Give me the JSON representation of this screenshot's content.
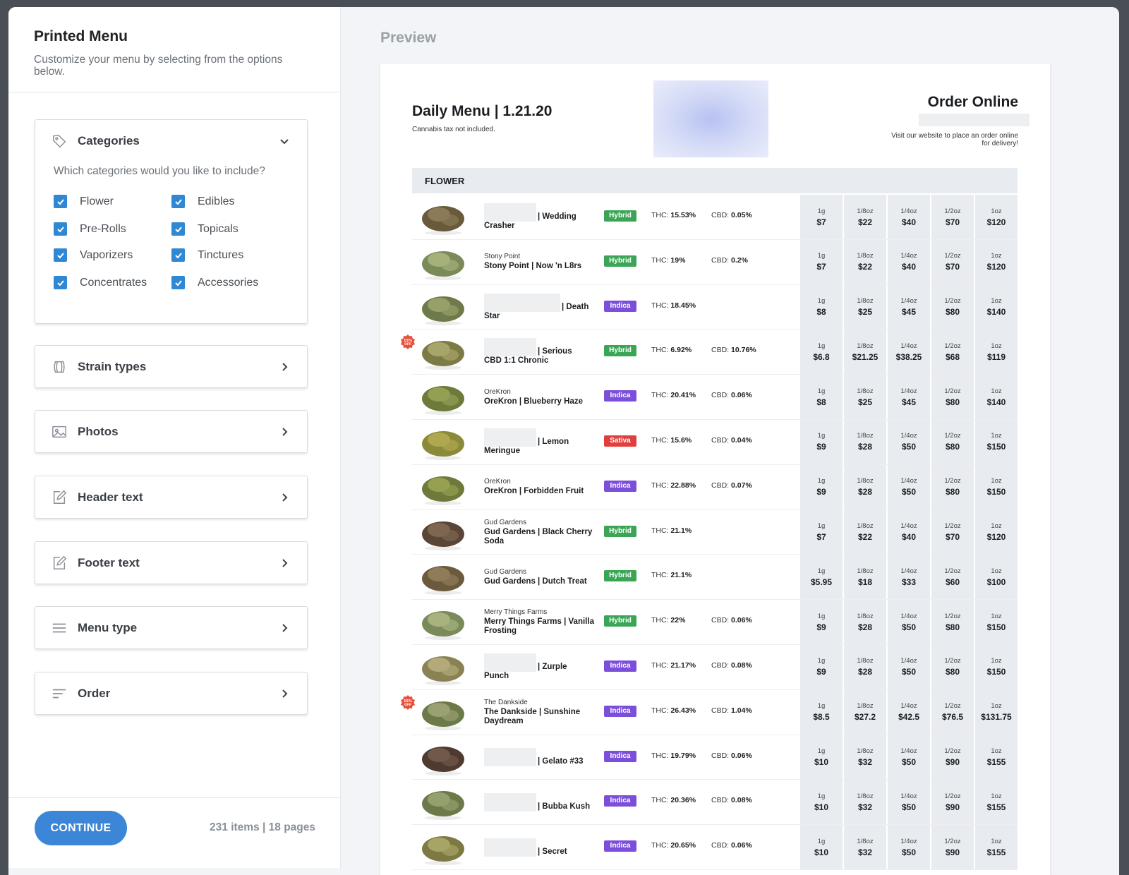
{
  "sidebar": {
    "title": "Printed Menu",
    "subtitle": "Customize your menu by selecting from the options below.",
    "categories": {
      "label": "Categories",
      "question": "Which categories would you like to include?",
      "items": [
        {
          "label": "Flower",
          "checked": true
        },
        {
          "label": "Edibles",
          "checked": true
        },
        {
          "label": "Pre-Rolls",
          "checked": true
        },
        {
          "label": "Topicals",
          "checked": true
        },
        {
          "label": "Vaporizers",
          "checked": true
        },
        {
          "label": "Tinctures",
          "checked": true
        },
        {
          "label": "Concentrates",
          "checked": true
        },
        {
          "label": "Accessories",
          "checked": true
        }
      ]
    },
    "sections": [
      {
        "label": "Strain types",
        "icon": "strain-icon"
      },
      {
        "label": "Photos",
        "icon": "image-icon"
      },
      {
        "label": "Header text",
        "icon": "edit-icon"
      },
      {
        "label": "Footer text",
        "icon": "edit-icon"
      },
      {
        "label": "Menu type",
        "icon": "menu-lines-icon"
      },
      {
        "label": "Order",
        "icon": "sort-icon"
      }
    ],
    "continue_label": "CONTINUE",
    "count_text": "231 items | 18 pages"
  },
  "preview": {
    "label": "Preview",
    "menu_title": "Daily Menu | 1.21.20",
    "tax_note": "Cannabis tax not included.",
    "order_title": "Order Online",
    "order_sub": "Visit our website to place an order online for delivery!",
    "section": "FLOWER",
    "units": [
      "1g",
      "1/8oz",
      "1/4oz",
      "1/2oz",
      "1oz"
    ],
    "colors": {
      "Hybrid": "#3aa655",
      "Indica": "#7b4fd9",
      "Sativa": "#e0403d",
      "accent": "#3b86d6"
    },
    "products": [
      {
        "brand": "",
        "name": "| Wedding",
        "name2": "Crasher",
        "blurred": true,
        "type": "Hybrid",
        "thc": "15.53%",
        "cbd": "0.05%",
        "prices": [
          "$7",
          "$22",
          "$40",
          "$70",
          "$120"
        ],
        "promo": false
      },
      {
        "brand": "Stony Point",
        "name": "Stony Point | Now 'n L8rs",
        "type": "Hybrid",
        "thc": "19%",
        "cbd": "0.2%",
        "prices": [
          "$7",
          "$22",
          "$40",
          "$70",
          "$120"
        ],
        "promo": false
      },
      {
        "brand": "",
        "name": "| Death",
        "name2": "Star",
        "blurred": true,
        "wide": true,
        "type": "Indica",
        "thc": "18.45%",
        "cbd": "",
        "prices": [
          "$8",
          "$25",
          "$45",
          "$80",
          "$140"
        ],
        "promo": false
      },
      {
        "brand": "",
        "name": "| Serious",
        "name2": "CBD 1:1 Chronic",
        "blurred": true,
        "type": "Hybrid",
        "thc": "6.92%",
        "cbd": "10.76%",
        "prices": [
          "$6.8",
          "$21.25",
          "$38.25",
          "$68",
          "$119"
        ],
        "promo": true
      },
      {
        "brand": "OreKron",
        "name": "OreKron | Blueberry Haze",
        "type": "Indica",
        "thc": "20.41%",
        "cbd": "0.06%",
        "prices": [
          "$8",
          "$25",
          "$45",
          "$80",
          "$140"
        ],
        "promo": false
      },
      {
        "brand": "",
        "name": "| Lemon",
        "name2": "Meringue",
        "blurred": true,
        "type": "Sativa",
        "thc": "15.6%",
        "cbd": "0.04%",
        "prices": [
          "$9",
          "$28",
          "$50",
          "$80",
          "$150"
        ],
        "promo": false
      },
      {
        "brand": "OreKron",
        "name": "OreKron | Forbidden Fruit",
        "type": "Indica",
        "thc": "22.88%",
        "cbd": "0.07%",
        "prices": [
          "$9",
          "$28",
          "$50",
          "$80",
          "$150"
        ],
        "promo": false
      },
      {
        "brand": "Gud Gardens",
        "name": "Gud Gardens | Black Cherry Soda",
        "type": "Hybrid",
        "thc": "21.1%",
        "cbd": "",
        "prices": [
          "$7",
          "$22",
          "$40",
          "$70",
          "$120"
        ],
        "promo": false
      },
      {
        "brand": "Gud Gardens",
        "name": "Gud Gardens | Dutch Treat",
        "type": "Hybrid",
        "thc": "21.1%",
        "cbd": "",
        "prices": [
          "$5.95",
          "$18",
          "$33",
          "$60",
          "$100"
        ],
        "promo": false
      },
      {
        "brand": "Merry Things Farms",
        "name": "Merry Things Farms | Vanilla Frosting",
        "type": "Hybrid",
        "thc": "22%",
        "cbd": "0.06%",
        "prices": [
          "$9",
          "$28",
          "$50",
          "$80",
          "$150"
        ],
        "promo": false
      },
      {
        "brand": "",
        "name": "| Zurple",
        "name2": "Punch",
        "blurred": true,
        "type": "Indica",
        "thc": "21.17%",
        "cbd": "0.08%",
        "prices": [
          "$9",
          "$28",
          "$50",
          "$80",
          "$150"
        ],
        "promo": false
      },
      {
        "brand": "The Dankside",
        "name": "The Dankside | Sunshine Daydream",
        "type": "Indica",
        "thc": "26.43%",
        "cbd": "1.04%",
        "prices": [
          "$8.5",
          "$27.2",
          "$42.5",
          "$76.5",
          "$131.75"
        ],
        "promo": true
      },
      {
        "brand": "",
        "name": "| Gelato #33",
        "name2": "",
        "blurred": true,
        "type": "Indica",
        "thc": "19.79%",
        "cbd": "0.06%",
        "prices": [
          "$10",
          "$32",
          "$50",
          "$90",
          "$155"
        ],
        "promo": false
      },
      {
        "brand": "",
        "name": "| Bubba Kush",
        "name2": "",
        "blurred": true,
        "type": "Indica",
        "thc": "20.36%",
        "cbd": "0.08%",
        "prices": [
          "$10",
          "$32",
          "$50",
          "$90",
          "$155"
        ],
        "promo": false
      },
      {
        "brand": "",
        "name": "| Secret",
        "name2": "",
        "blurred": true,
        "type": "Indica",
        "thc": "20.65%",
        "cbd": "0.06%",
        "prices": [
          "$10",
          "$32",
          "$50",
          "$90",
          "$155"
        ],
        "promo": false
      }
    ],
    "promo_text": "15% OFF"
  }
}
